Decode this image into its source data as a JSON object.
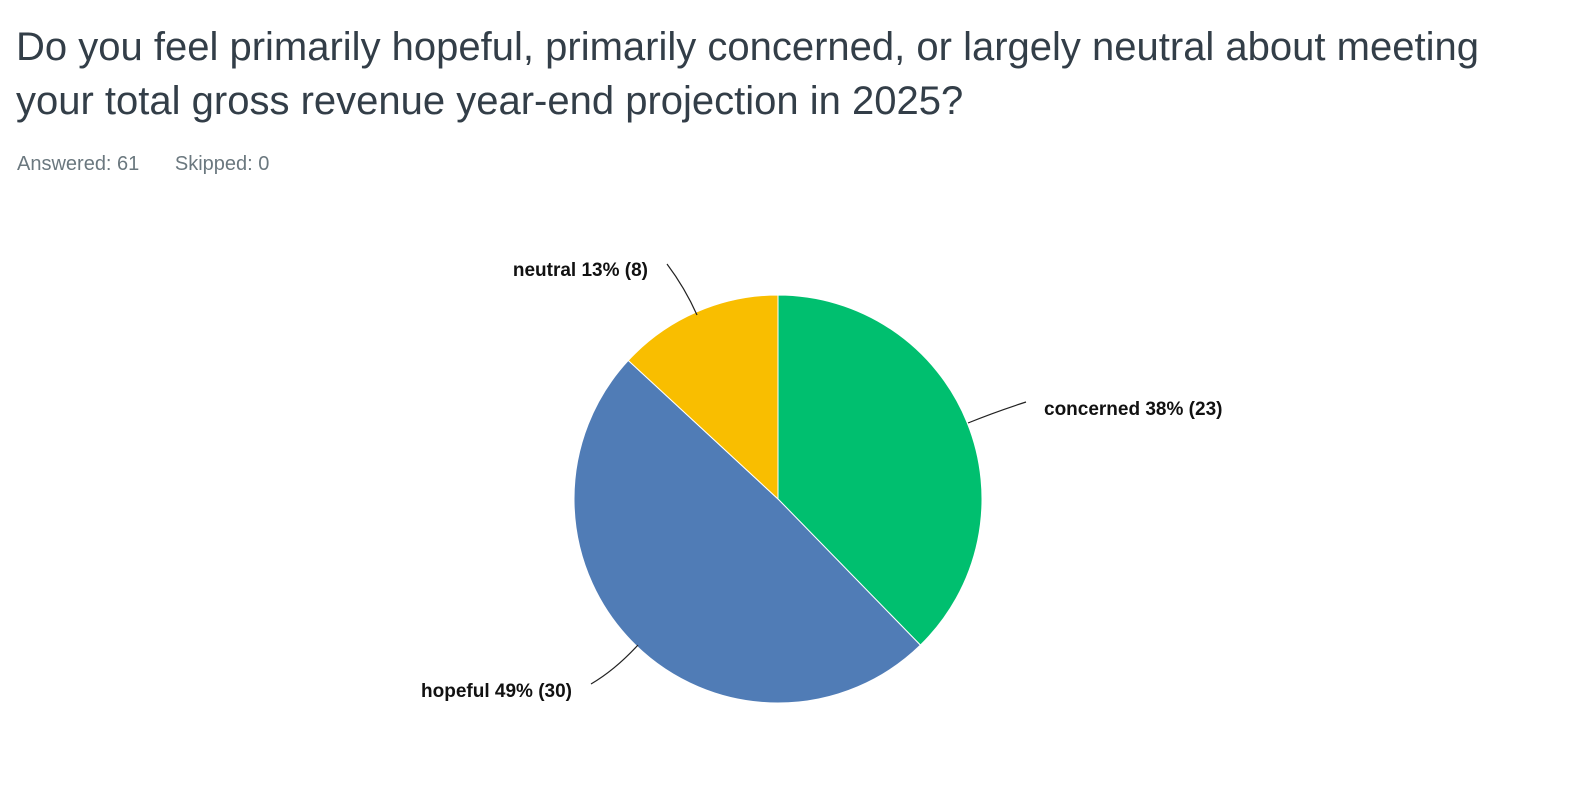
{
  "question": {
    "title": "Do you feel primarily hopeful, primarily concerned, or largely neutral about meeting your total gross revenue year-end projection in 2025?"
  },
  "stats": {
    "answered": "Answered: 61",
    "skipped": "Skipped: 0"
  },
  "chart_data": {
    "type": "pie",
    "slices": [
      {
        "label": "concerned 38% (23)",
        "category": "concerned",
        "percent": 38,
        "count": 23,
        "color": "#00bf6f"
      },
      {
        "label": "hopeful 49% (30)",
        "category": "hopeful",
        "percent": 49,
        "count": 30,
        "color": "#507cb6"
      },
      {
        "label": "neutral 13% (8)",
        "category": "neutral",
        "percent": 13,
        "count": 8,
        "color": "#f9be00"
      }
    ]
  }
}
